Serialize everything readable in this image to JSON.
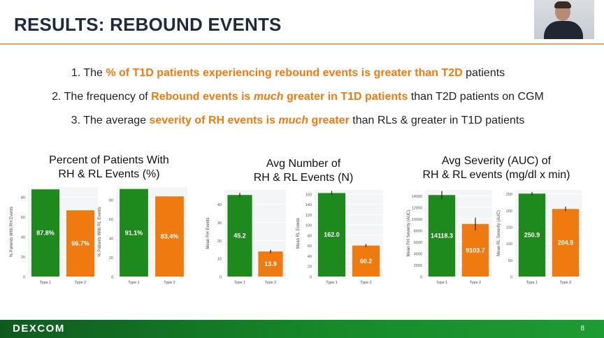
{
  "title": "RESULTS: REBOUND EVENTS",
  "points": [
    {
      "num": "1.",
      "parts": [
        {
          "t": "The ",
          "s": ""
        },
        {
          "t": "% of T1D patients experiencing rebound events is greater than T2D",
          "s": "hl"
        },
        {
          "t": " patients",
          "s": ""
        }
      ]
    },
    {
      "num": "2.",
      "parts": [
        {
          "t": "The frequency of ",
          "s": ""
        },
        {
          "t": "Rebound events is ",
          "s": "hl"
        },
        {
          "t": "much",
          "s": "hl-it"
        },
        {
          "t": " greater in T1D patients",
          "s": "hl"
        },
        {
          "t": " than T2D patients on CGM",
          "s": ""
        }
      ]
    },
    {
      "num": "3.",
      "parts": [
        {
          "t": "The average ",
          "s": ""
        },
        {
          "t": "severity of RH events is ",
          "s": "hl"
        },
        {
          "t": "much",
          "s": "hl-it"
        },
        {
          "t": " greater",
          "s": "hl"
        },
        {
          "t": " than RLs & greater in T1D patients",
          "s": ""
        }
      ]
    }
  ],
  "panels": [
    {
      "title_line1": "Percent of Patients With",
      "title_line2": "RH & RL Events (%)"
    },
    {
      "title_line1": "Avg Number of",
      "title_line2": "RH & RL Events (N)"
    },
    {
      "title_line1": "Avg Severity (AUC) of",
      "title_line2": "RH & RL events (mg/dl x min)"
    }
  ],
  "colors": {
    "type1": "#1e8a1e",
    "type2": "#ef7b10",
    "accent": "#ef7b10",
    "footer": "#178a2a"
  },
  "chart_data": [
    {
      "type": "bar",
      "ylabel": "% Patients With RH Events",
      "categories": [
        "Type 1",
        "Type 2"
      ],
      "values": [
        87.8,
        66.7
      ],
      "value_labels": [
        "87.8%",
        "66.7%"
      ],
      "ylim": [
        0,
        90
      ],
      "ticks": [
        0,
        20,
        40,
        60,
        80
      ],
      "error_bars": false
    },
    {
      "type": "bar",
      "ylabel": "% Patients With RL Events",
      "categories": [
        "Type 1",
        "Type 2"
      ],
      "values": [
        91.1,
        83.4
      ],
      "value_labels": [
        "91.1%",
        "83.4%"
      ],
      "ylim": [
        0,
        93
      ],
      "ticks": [
        0,
        20,
        40,
        60,
        80
      ],
      "error_bars": false
    },
    {
      "type": "bar",
      "ylabel": "Mean RH Events",
      "categories": [
        "Type 1",
        "Type 2"
      ],
      "values": [
        45.2,
        13.9
      ],
      "value_labels": [
        "45.2",
        "13.9"
      ],
      "ylim": [
        0,
        48
      ],
      "ticks": [
        0,
        10,
        20,
        30,
        40
      ],
      "error_bars": true,
      "err": [
        1.2,
        0.9
      ]
    },
    {
      "type": "bar",
      "ylabel": "Mean RL Events",
      "categories": [
        "Type 1",
        "Type 2"
      ],
      "values": [
        162.0,
        60.2
      ],
      "value_labels": [
        "162.0",
        "60.2"
      ],
      "ylim": [
        0,
        168
      ],
      "ticks": [
        0,
        20,
        40,
        60,
        80,
        100,
        120,
        140,
        160
      ],
      "error_bars": true,
      "err": [
        4,
        3
      ]
    },
    {
      "type": "bar",
      "ylabel": "Mean RH Severity (AUC)",
      "categories": [
        "Type 1",
        "Type 2"
      ],
      "values": [
        14118.3,
        9103.7
      ],
      "value_labels": [
        "14118.3",
        "9103.7"
      ],
      "ylim": [
        0,
        15000
      ],
      "ticks": [
        0,
        2000,
        4000,
        6000,
        8000,
        10000,
        12000,
        14000
      ],
      "error_bars": true,
      "err": [
        700,
        1100
      ]
    },
    {
      "type": "bar",
      "ylabel": "Mean RL Severity (AUC)",
      "categories": [
        "Type 1",
        "Type 2"
      ],
      "values": [
        250.9,
        204.5
      ],
      "value_labels": [
        "250.9",
        "204.5"
      ],
      "ylim": [
        0,
        262
      ],
      "ticks": [
        0,
        50,
        100,
        150,
        200,
        250
      ],
      "error_bars": true,
      "err": [
        5,
        7
      ]
    }
  ],
  "footer": {
    "logo": "DEXCOM",
    "page": "8"
  }
}
